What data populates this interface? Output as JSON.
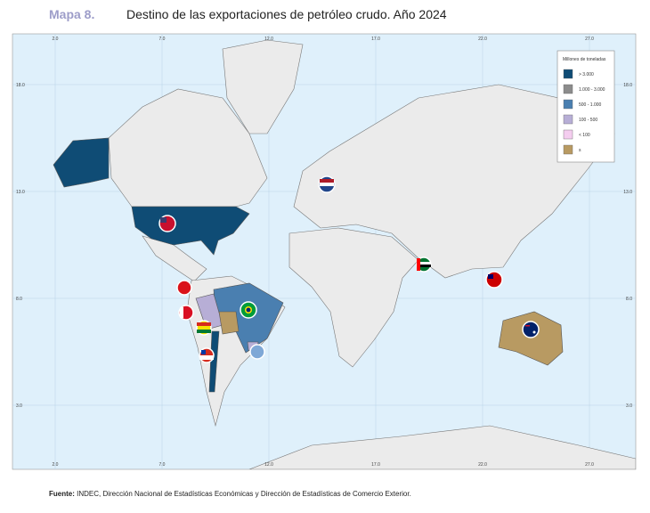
{
  "header": {
    "label": "Mapa 8.",
    "title": "Destino de las exportaciones de petróleo crudo. Año 2024"
  },
  "grid": {
    "longitudes": [
      "2.0",
      "7.0",
      "12.0",
      "17.0",
      "22.0",
      "27.0"
    ],
    "latitudes": [
      "18.0",
      "13.0",
      "8.0",
      "3.0"
    ]
  },
  "legend": {
    "title": "Millones de toneladas",
    "items": [
      {
        "label": "> 3.000",
        "color": "#0f4c75"
      },
      {
        "label": "1.000 - 3.000",
        "color": "#8c8c8c"
      },
      {
        "label": "500 - 1.000",
        "color": "#4a7fb0"
      },
      {
        "label": "100 - 500",
        "color": "#b7aed6"
      },
      {
        "label": "< 100",
        "color": "#f4cdef"
      },
      {
        "label": "s",
        "color": "#b89a62"
      }
    ]
  },
  "footer": {
    "label": "Fuente:",
    "text": " INDEC, Dirección Nacional de Estadísticas Económicas y Dirección de Estadísticas de Comercio Exterior."
  }
}
